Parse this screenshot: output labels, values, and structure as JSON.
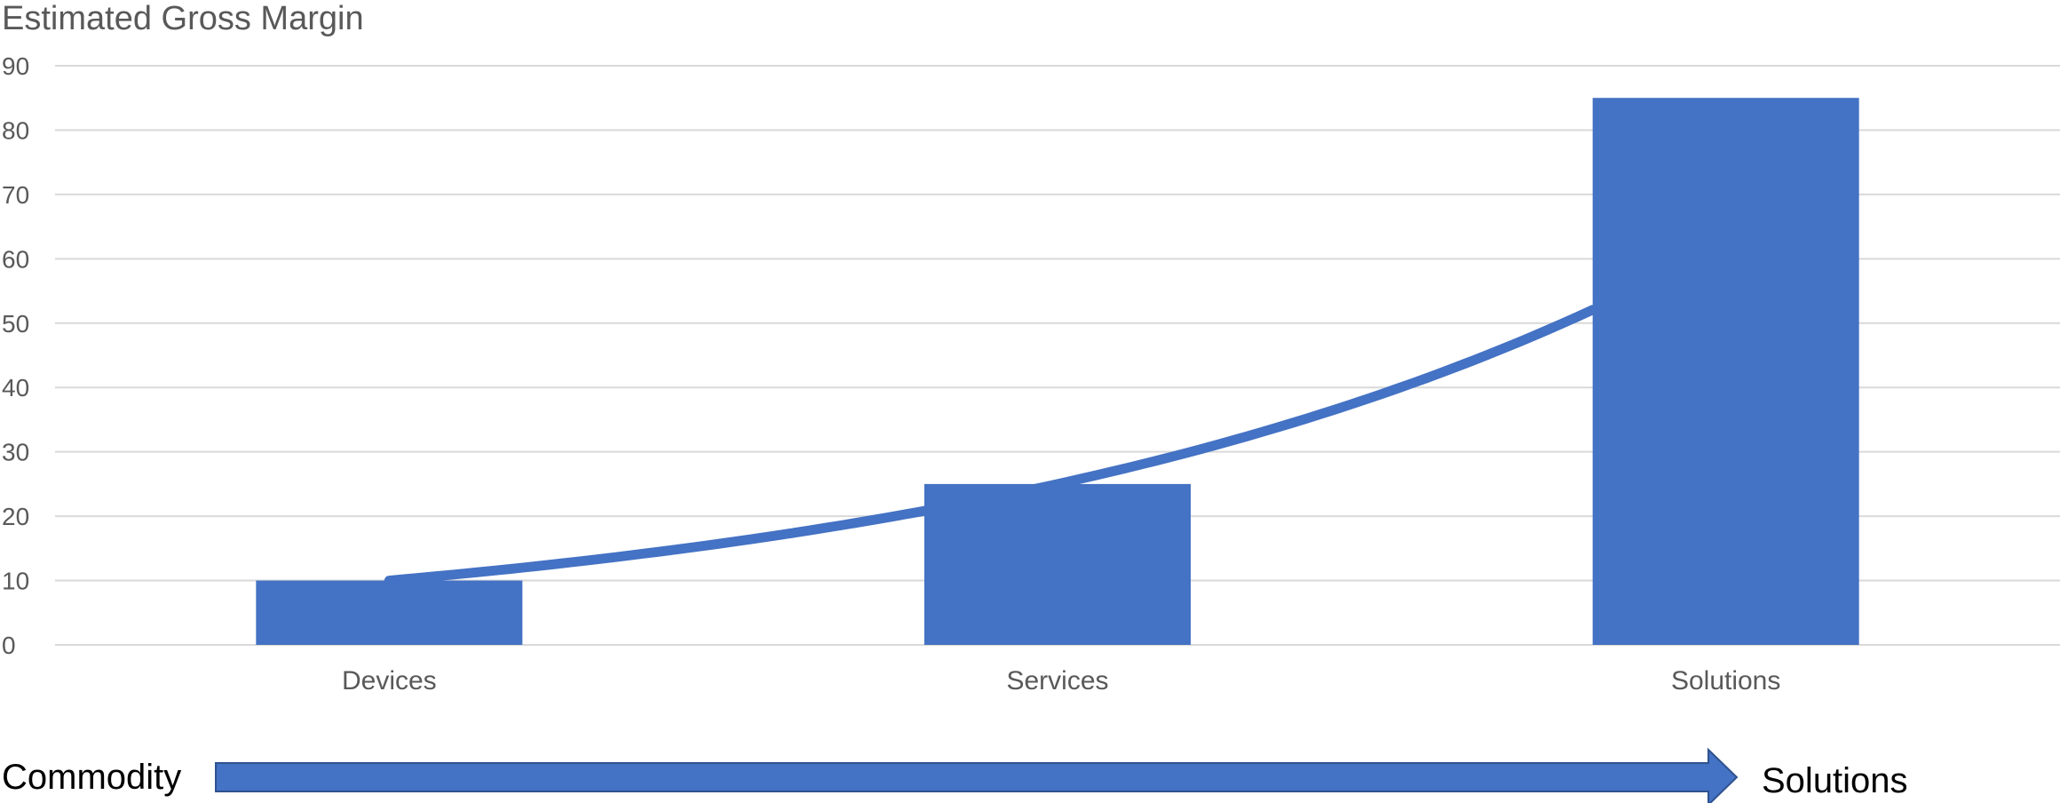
{
  "chart_data": {
    "type": "bar",
    "title": "Estimated Gross Margin",
    "categories": [
      "Devices",
      "Services",
      "Solutions"
    ],
    "values": [
      10,
      25,
      85
    ],
    "ylim": [
      0,
      90
    ],
    "yticks": [
      0,
      10,
      20,
      30,
      40,
      50,
      60,
      70,
      80,
      90
    ],
    "grid": true,
    "trend_curve": true,
    "colors": {
      "bar": "#4472C4",
      "grid": "#D9D9D9",
      "text": "#595959"
    }
  },
  "footer": {
    "left_label": "Commodity",
    "right_label": "Solutions"
  }
}
